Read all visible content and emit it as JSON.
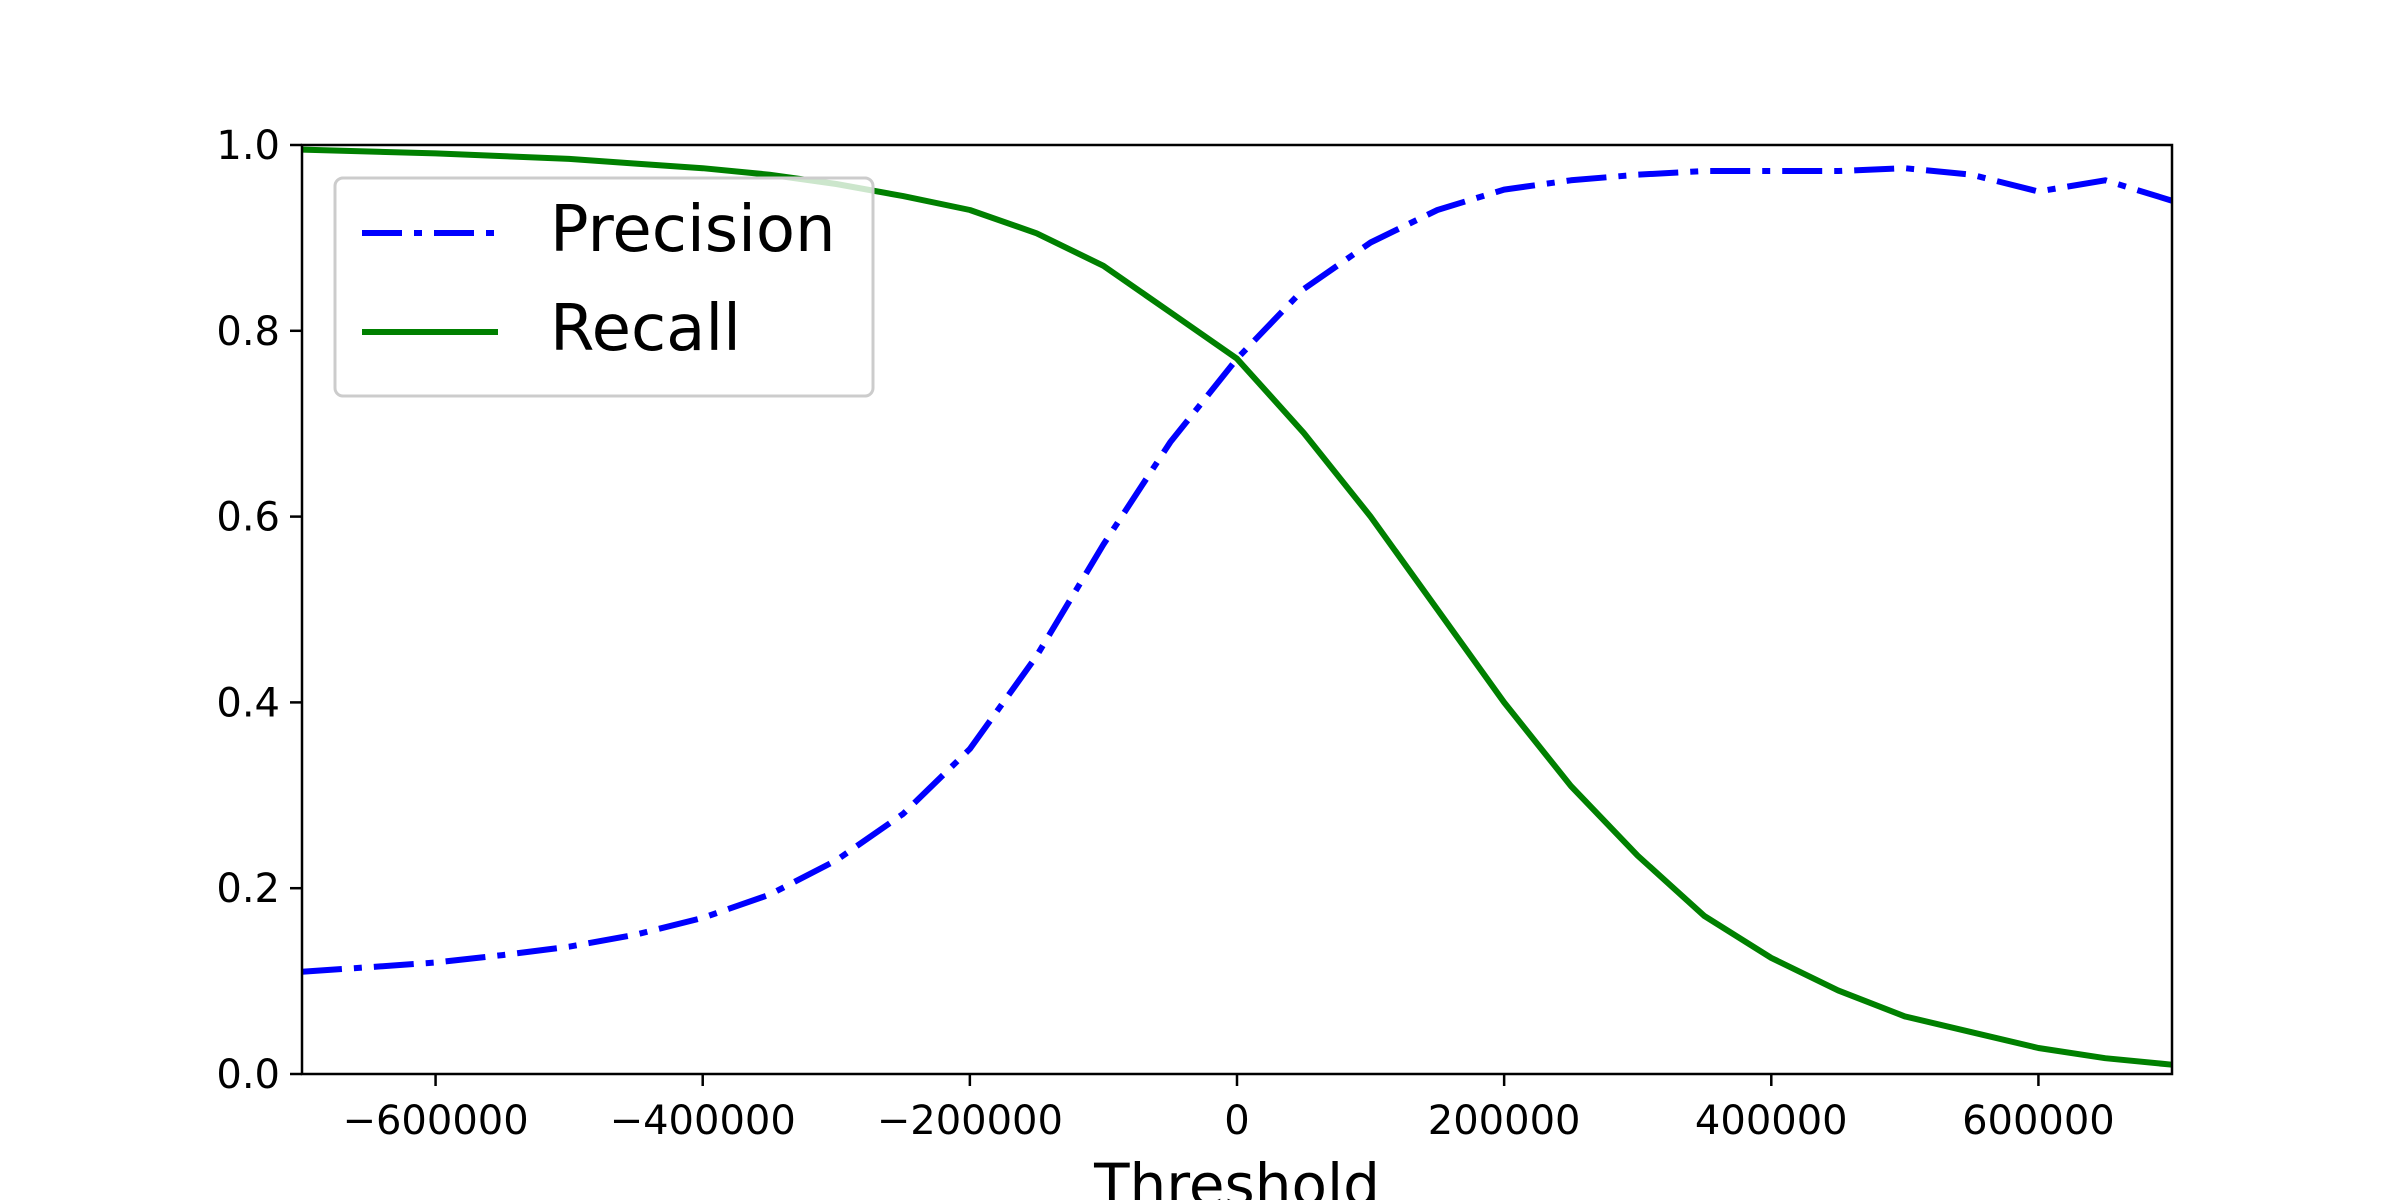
{
  "chart_data": {
    "type": "line",
    "title": "",
    "xlabel": "Threshold",
    "ylabel": "",
    "xlim": [
      -700000,
      700000
    ],
    "ylim": [
      0,
      1
    ],
    "x_ticks": [
      -600000,
      -400000,
      -200000,
      0,
      200000,
      400000,
      600000
    ],
    "x_tick_labels": [
      "−600000",
      "−400000",
      "−200000",
      "0",
      "200000",
      "400000",
      "600000"
    ],
    "y_ticks": [
      0.0,
      0.2,
      0.4,
      0.6,
      0.8,
      1.0
    ],
    "y_tick_labels": [
      "0.0",
      "0.2",
      "0.4",
      "0.6",
      "0.8",
      "1.0"
    ],
    "grid": false,
    "legend_position": "upper-left",
    "x": [
      -700000,
      -650000,
      -600000,
      -550000,
      -500000,
      -450000,
      -400000,
      -350000,
      -300000,
      -250000,
      -200000,
      -150000,
      -100000,
      -50000,
      0,
      50000,
      100000,
      150000,
      200000,
      250000,
      300000,
      350000,
      400000,
      450000,
      500000,
      550000,
      600000,
      650000,
      700000
    ],
    "series": [
      {
        "name": "Precision",
        "color": "#0000ff",
        "style": "dash-dot",
        "values": [
          0.11,
          0.115,
          0.12,
          0.128,
          0.137,
          0.15,
          0.168,
          0.193,
          0.23,
          0.28,
          0.35,
          0.45,
          0.57,
          0.68,
          0.77,
          0.845,
          0.895,
          0.93,
          0.952,
          0.962,
          0.968,
          0.972,
          0.972,
          0.972,
          0.975,
          0.968,
          0.95,
          0.962,
          0.94
        ]
      },
      {
        "name": "Recall",
        "color": "#008000",
        "style": "solid",
        "values": [
          0.995,
          0.993,
          0.991,
          0.988,
          0.985,
          0.98,
          0.975,
          0.968,
          0.958,
          0.945,
          0.93,
          0.905,
          0.87,
          0.82,
          0.77,
          0.69,
          0.6,
          0.5,
          0.4,
          0.31,
          0.235,
          0.17,
          0.125,
          0.09,
          0.062,
          0.045,
          0.028,
          0.017,
          0.01
        ]
      }
    ]
  }
}
